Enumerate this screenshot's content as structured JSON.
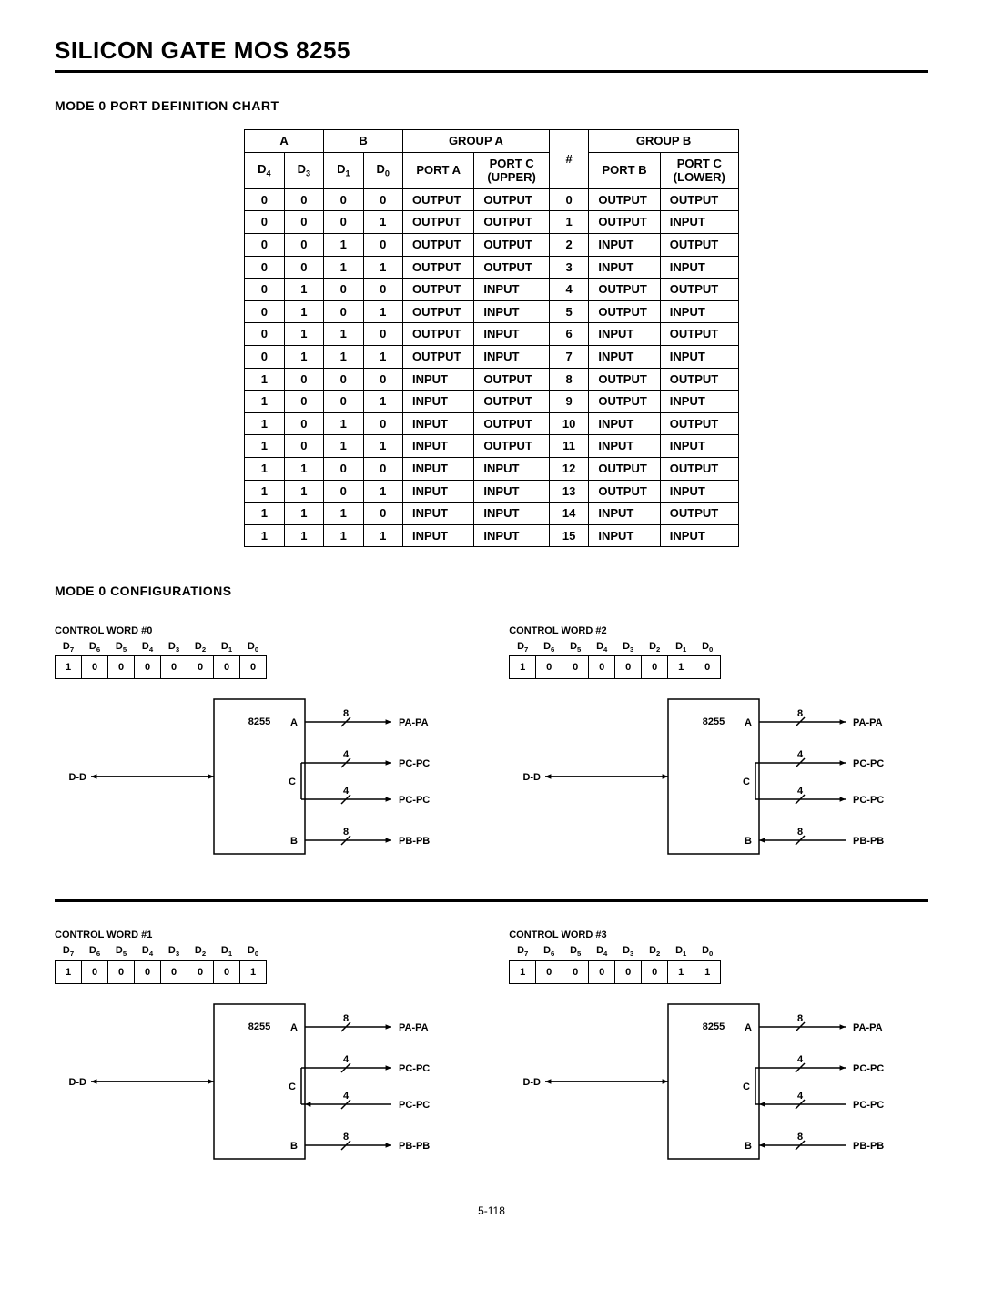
{
  "page_title": "SILICON GATE MOS 8255",
  "section1_title": "MODE 0 PORT DEFINITION CHART",
  "section2_title": "MODE 0 CONFIGURATIONS",
  "table": {
    "group_headers": [
      "A",
      "B",
      "GROUP A",
      "",
      "GROUP B"
    ],
    "col_headers": [
      "D4",
      "D3",
      "D1",
      "D0",
      "PORT A",
      "PORT C\n(UPPER)",
      "#",
      "PORT B",
      "PORT C\n(LOWER)"
    ],
    "rows": [
      [
        "0",
        "0",
        "0",
        "0",
        "OUTPUT",
        "OUTPUT",
        "0",
        "OUTPUT",
        "OUTPUT"
      ],
      [
        "0",
        "0",
        "0",
        "1",
        "OUTPUT",
        "OUTPUT",
        "1",
        "OUTPUT",
        "INPUT"
      ],
      [
        "0",
        "0",
        "1",
        "0",
        "OUTPUT",
        "OUTPUT",
        "2",
        "INPUT",
        "OUTPUT"
      ],
      [
        "0",
        "0",
        "1",
        "1",
        "OUTPUT",
        "OUTPUT",
        "3",
        "INPUT",
        "INPUT"
      ],
      [
        "0",
        "1",
        "0",
        "0",
        "OUTPUT",
        "INPUT",
        "4",
        "OUTPUT",
        "OUTPUT"
      ],
      [
        "0",
        "1",
        "0",
        "1",
        "OUTPUT",
        "INPUT",
        "5",
        "OUTPUT",
        "INPUT"
      ],
      [
        "0",
        "1",
        "1",
        "0",
        "OUTPUT",
        "INPUT",
        "6",
        "INPUT",
        "OUTPUT"
      ],
      [
        "0",
        "1",
        "1",
        "1",
        "OUTPUT",
        "INPUT",
        "7",
        "INPUT",
        "INPUT"
      ],
      [
        "1",
        "0",
        "0",
        "0",
        "INPUT",
        "OUTPUT",
        "8",
        "OUTPUT",
        "OUTPUT"
      ],
      [
        "1",
        "0",
        "0",
        "1",
        "INPUT",
        "OUTPUT",
        "9",
        "OUTPUT",
        "INPUT"
      ],
      [
        "1",
        "0",
        "1",
        "0",
        "INPUT",
        "OUTPUT",
        "10",
        "INPUT",
        "OUTPUT"
      ],
      [
        "1",
        "0",
        "1",
        "1",
        "INPUT",
        "OUTPUT",
        "11",
        "INPUT",
        "INPUT"
      ],
      [
        "1",
        "1",
        "0",
        "0",
        "INPUT",
        "INPUT",
        "12",
        "OUTPUT",
        "OUTPUT"
      ],
      [
        "1",
        "1",
        "0",
        "1",
        "INPUT",
        "INPUT",
        "13",
        "OUTPUT",
        "INPUT"
      ],
      [
        "1",
        "1",
        "1",
        "0",
        "INPUT",
        "INPUT",
        "14",
        "INPUT",
        "OUTPUT"
      ],
      [
        "1",
        "1",
        "1",
        "1",
        "INPUT",
        "INPUT",
        "15",
        "INPUT",
        "INPUT"
      ]
    ]
  },
  "bit_labels": [
    "D7",
    "D6",
    "D5",
    "D4",
    "D3",
    "D2",
    "D1",
    "D0"
  ],
  "configs": [
    {
      "title": "CONTROL WORD #0",
      "bits": [
        "1",
        "0",
        "0",
        "0",
        "0",
        "0",
        "0",
        "0"
      ],
      "ports": {
        "A": {
          "dir": "out",
          "w": "8",
          "lbl": "PA7-PA0"
        },
        "Cu": {
          "dir": "out",
          "w": "4",
          "lbl": "PC7-PC4"
        },
        "Cl": {
          "dir": "out",
          "w": "4",
          "lbl": "PC3-PC0"
        },
        "B": {
          "dir": "out",
          "w": "8",
          "lbl": "PB7-PB0"
        }
      }
    },
    {
      "title": "CONTROL WORD #2",
      "bits": [
        "1",
        "0",
        "0",
        "0",
        "0",
        "0",
        "1",
        "0"
      ],
      "ports": {
        "A": {
          "dir": "out",
          "w": "8",
          "lbl": "PA7-PA0"
        },
        "Cu": {
          "dir": "out",
          "w": "4",
          "lbl": "PC7-PC4"
        },
        "Cl": {
          "dir": "out",
          "w": "4",
          "lbl": "PC3-PC0"
        },
        "B": {
          "dir": "in",
          "w": "8",
          "lbl": "PB7-PB0"
        }
      }
    },
    {
      "title": "CONTROL WORD #1",
      "bits": [
        "1",
        "0",
        "0",
        "0",
        "0",
        "0",
        "0",
        "1"
      ],
      "ports": {
        "A": {
          "dir": "out",
          "w": "8",
          "lbl": "PA7-PA0"
        },
        "Cu": {
          "dir": "out",
          "w": "4",
          "lbl": "PC7-PC4"
        },
        "Cl": {
          "dir": "in",
          "w": "4",
          "lbl": "PC3-PC0"
        },
        "B": {
          "dir": "out",
          "w": "8",
          "lbl": "PB7-PB0"
        }
      }
    },
    {
      "title": "CONTROL WORD #3",
      "bits": [
        "1",
        "0",
        "0",
        "0",
        "0",
        "0",
        "1",
        "1"
      ],
      "ports": {
        "A": {
          "dir": "out",
          "w": "8",
          "lbl": "PA7-PA0"
        },
        "Cu": {
          "dir": "out",
          "w": "4",
          "lbl": "PC7-PC4"
        },
        "Cl": {
          "dir": "in",
          "w": "4",
          "lbl": "PC3-PC0"
        },
        "B": {
          "dir": "in",
          "w": "8",
          "lbl": "PB7-PB0"
        }
      }
    }
  ],
  "chip_label": "8255",
  "d_bus_label": "D7-D0",
  "footer": "5-118"
}
